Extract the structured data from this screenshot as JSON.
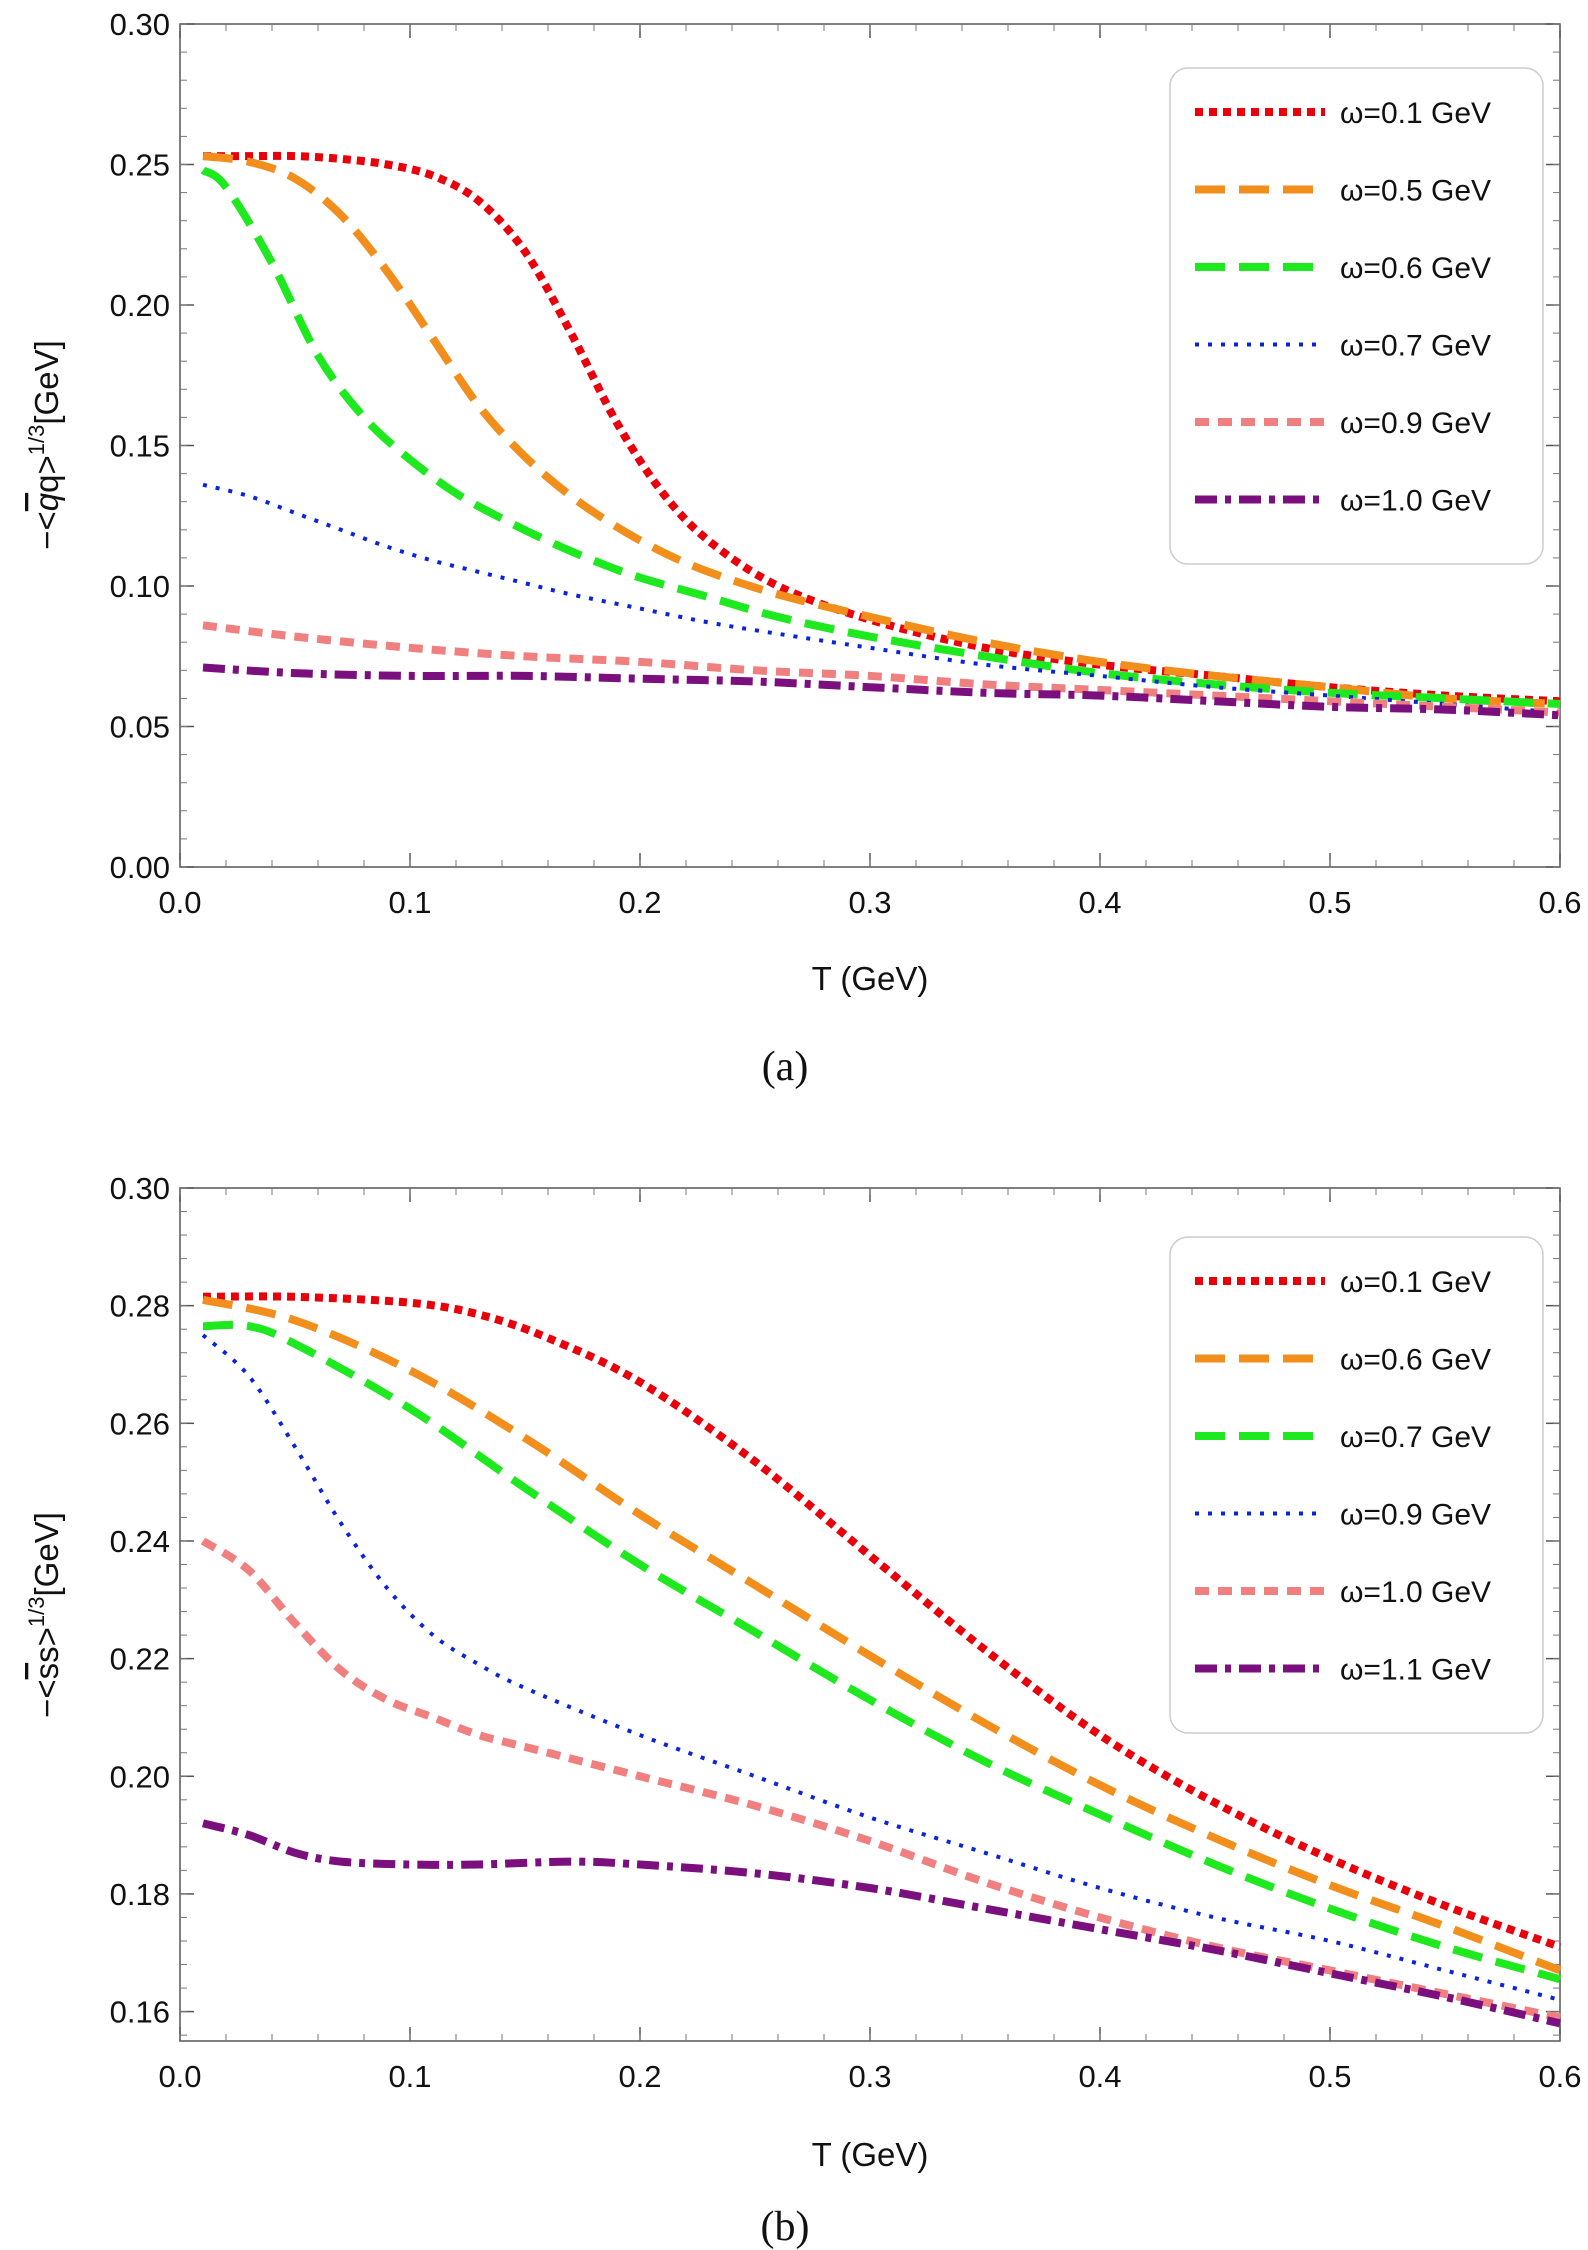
{
  "chart_data": [
    {
      "type": "line",
      "caption": "(a)",
      "xlabel": "T (GeV)",
      "ylabel": {
        "prefix": "−<",
        "bar": "q",
        "rest": "q>",
        "sup": "1/3",
        "unit": "[GeV]"
      },
      "xlim": [
        0.0,
        0.6
      ],
      "ylim": [
        0.0,
        0.3
      ],
      "xticks": [
        "0.0",
        "0.1",
        "0.2",
        "0.3",
        "0.4",
        "0.5",
        "0.6"
      ],
      "yticks": [
        "0.00",
        "0.05",
        "0.10",
        "0.15",
        "0.20",
        "0.25",
        "0.30"
      ],
      "grid": false,
      "legend_position": "top-right",
      "series": [
        {
          "name": "ω=0.1 GeV",
          "color": "#e8000b",
          "style": "dotted-dense",
          "x": [
            0.01,
            0.03,
            0.05,
            0.07,
            0.09,
            0.11,
            0.13,
            0.15,
            0.17,
            0.19,
            0.21,
            0.23,
            0.26,
            0.3,
            0.35,
            0.4,
            0.45,
            0.5,
            0.55,
            0.6
          ],
          "y": [
            0.253,
            0.253,
            0.253,
            0.252,
            0.25,
            0.246,
            0.237,
            0.219,
            0.19,
            0.158,
            0.133,
            0.116,
            0.1,
            0.088,
            0.078,
            0.072,
            0.068,
            0.064,
            0.061,
            0.059
          ]
        },
        {
          "name": "ω=0.5 GeV",
          "color": "#f28e1c",
          "style": "long-dash",
          "x": [
            0.01,
            0.03,
            0.05,
            0.07,
            0.09,
            0.11,
            0.13,
            0.15,
            0.17,
            0.19,
            0.21,
            0.23,
            0.26,
            0.3,
            0.35,
            0.4,
            0.45,
            0.5,
            0.55,
            0.6
          ],
          "y": [
            0.253,
            0.251,
            0.245,
            0.232,
            0.212,
            0.188,
            0.164,
            0.146,
            0.132,
            0.121,
            0.112,
            0.105,
            0.097,
            0.089,
            0.08,
            0.073,
            0.068,
            0.064,
            0.06,
            0.058
          ]
        },
        {
          "name": "ω=0.6 GeV",
          "color": "#1ee81e",
          "style": "long-dash",
          "x": [
            0.01,
            0.02,
            0.04,
            0.06,
            0.08,
            0.1,
            0.12,
            0.14,
            0.16,
            0.18,
            0.2,
            0.23,
            0.26,
            0.3,
            0.35,
            0.4,
            0.45,
            0.5,
            0.55,
            0.6
          ],
          "y": [
            0.248,
            0.242,
            0.215,
            0.182,
            0.16,
            0.145,
            0.133,
            0.124,
            0.116,
            0.109,
            0.103,
            0.096,
            0.089,
            0.082,
            0.075,
            0.069,
            0.065,
            0.062,
            0.06,
            0.058
          ]
        },
        {
          "name": "ω=0.7 GeV",
          "color": "#0b24d8",
          "style": "dotted-fine",
          "x": [
            0.01,
            0.03,
            0.05,
            0.07,
            0.09,
            0.11,
            0.13,
            0.15,
            0.17,
            0.2,
            0.23,
            0.26,
            0.3,
            0.35,
            0.4,
            0.45,
            0.5,
            0.55,
            0.6
          ],
          "y": [
            0.136,
            0.132,
            0.126,
            0.12,
            0.114,
            0.109,
            0.105,
            0.101,
            0.097,
            0.092,
            0.087,
            0.083,
            0.078,
            0.072,
            0.068,
            0.064,
            0.061,
            0.058,
            0.055
          ]
        },
        {
          "name": "ω=0.9 GeV",
          "color": "#f08080",
          "style": "short-dash",
          "x": [
            0.01,
            0.05,
            0.1,
            0.15,
            0.2,
            0.25,
            0.3,
            0.35,
            0.4,
            0.45,
            0.5,
            0.55,
            0.6
          ],
          "y": [
            0.086,
            0.082,
            0.078,
            0.075,
            0.073,
            0.07,
            0.068,
            0.065,
            0.063,
            0.061,
            0.059,
            0.057,
            0.055
          ]
        },
        {
          "name": "ω=1.0 GeV",
          "color": "#7a0f7d",
          "style": "dash-dot",
          "x": [
            0.01,
            0.05,
            0.1,
            0.15,
            0.2,
            0.25,
            0.3,
            0.35,
            0.4,
            0.45,
            0.5,
            0.55,
            0.6
          ],
          "y": [
            0.071,
            0.069,
            0.068,
            0.068,
            0.067,
            0.066,
            0.064,
            0.062,
            0.061,
            0.059,
            0.057,
            0.056,
            0.054
          ]
        }
      ]
    },
    {
      "type": "line",
      "caption": "(b)",
      "xlabel": "T (GeV)",
      "ylabel": {
        "prefix": "−<",
        "bar": "s",
        "rest": "s>",
        "sup": "1/3",
        "unit": "[GeV]"
      },
      "xlim": [
        0.0,
        0.6
      ],
      "ylim": [
        0.155,
        0.3
      ],
      "xticks": [
        "0.0",
        "0.1",
        "0.2",
        "0.3",
        "0.4",
        "0.5",
        "0.6"
      ],
      "yticks": [
        "0.16",
        "0.18",
        "0.20",
        "0.22",
        "0.24",
        "0.26",
        "0.28",
        "0.30"
      ],
      "grid": false,
      "legend_position": "top-right",
      "series": [
        {
          "name": "ω=0.1 GeV",
          "color": "#e8000b",
          "style": "dotted-dense",
          "x": [
            0.01,
            0.05,
            0.1,
            0.13,
            0.16,
            0.2,
            0.25,
            0.3,
            0.35,
            0.4,
            0.45,
            0.5,
            0.55,
            0.6
          ],
          "y": [
            0.2815,
            0.2815,
            0.2805,
            0.2785,
            0.2745,
            0.267,
            0.2535,
            0.2375,
            0.2215,
            0.207,
            0.1955,
            0.186,
            0.178,
            0.171
          ]
        },
        {
          "name": "ω=0.6 GeV",
          "color": "#f28e1c",
          "style": "long-dash",
          "x": [
            0.01,
            0.05,
            0.1,
            0.15,
            0.2,
            0.25,
            0.3,
            0.35,
            0.4,
            0.45,
            0.5,
            0.55,
            0.6
          ],
          "y": [
            0.281,
            0.2775,
            0.269,
            0.2575,
            0.2445,
            0.2325,
            0.2205,
            0.209,
            0.1985,
            0.1895,
            0.1815,
            0.1745,
            0.167
          ]
        },
        {
          "name": "ω=0.7 GeV",
          "color": "#1ee81e",
          "style": "long-dash",
          "x": [
            0.01,
            0.03,
            0.05,
            0.1,
            0.15,
            0.2,
            0.25,
            0.3,
            0.35,
            0.4,
            0.45,
            0.5,
            0.55,
            0.6
          ],
          "y": [
            0.2765,
            0.2765,
            0.2735,
            0.2625,
            0.249,
            0.236,
            0.2245,
            0.213,
            0.2025,
            0.1935,
            0.185,
            0.1775,
            0.171,
            0.1655
          ]
        },
        {
          "name": "ω=0.9 GeV",
          "color": "#0b24d8",
          "style": "dotted-fine",
          "x": [
            0.01,
            0.03,
            0.05,
            0.07,
            0.09,
            0.11,
            0.13,
            0.15,
            0.2,
            0.25,
            0.3,
            0.35,
            0.4,
            0.45,
            0.5,
            0.55,
            0.6
          ],
          "y": [
            0.275,
            0.268,
            0.256,
            0.243,
            0.232,
            0.224,
            0.219,
            0.215,
            0.207,
            0.2,
            0.193,
            0.187,
            0.181,
            0.176,
            0.172,
            0.167,
            0.162
          ]
        },
        {
          "name": "ω=1.0 GeV",
          "color": "#f08080",
          "style": "short-dash",
          "x": [
            0.01,
            0.03,
            0.05,
            0.07,
            0.09,
            0.11,
            0.13,
            0.15,
            0.2,
            0.25,
            0.3,
            0.35,
            0.4,
            0.45,
            0.5,
            0.55,
            0.6
          ],
          "y": [
            0.24,
            0.235,
            0.226,
            0.218,
            0.213,
            0.21,
            0.207,
            0.205,
            0.2,
            0.195,
            0.189,
            0.182,
            0.176,
            0.171,
            0.167,
            0.163,
            0.159
          ]
        },
        {
          "name": "ω=1.1 GeV",
          "color": "#7a0f7d",
          "style": "dash-dot",
          "x": [
            0.01,
            0.03,
            0.05,
            0.07,
            0.1,
            0.13,
            0.17,
            0.2,
            0.25,
            0.3,
            0.35,
            0.4,
            0.45,
            0.5,
            0.55,
            0.6
          ],
          "y": [
            0.192,
            0.19,
            0.187,
            0.1855,
            0.185,
            0.185,
            0.1855,
            0.185,
            0.1835,
            0.181,
            0.1775,
            0.174,
            0.1705,
            0.1665,
            0.1625,
            0.158
          ]
        }
      ]
    }
  ]
}
